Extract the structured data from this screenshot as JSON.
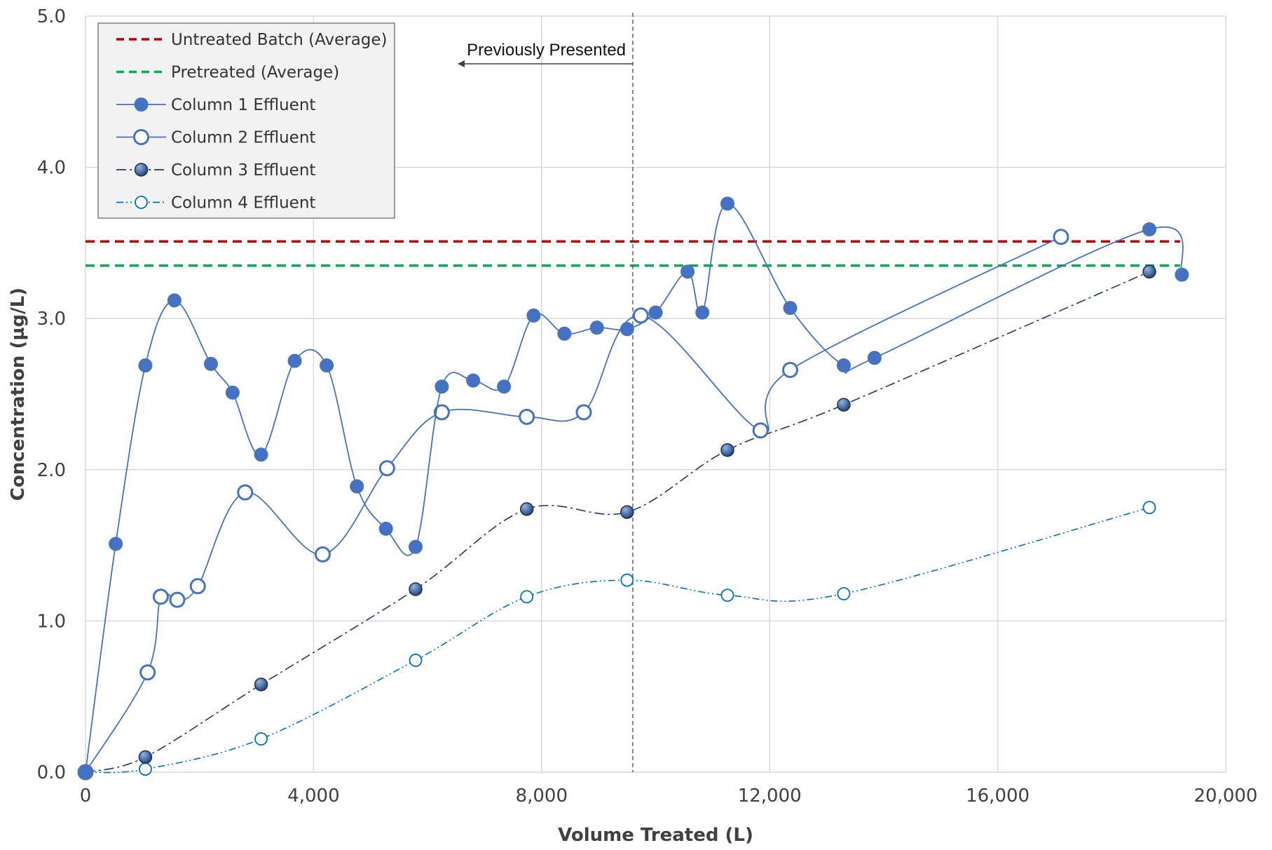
{
  "chart_data": {
    "type": "line",
    "title": "",
    "xlabel": "Volume Treated (L)",
    "ylabel": "Concentration (µg/L)",
    "xlim": [
      0,
      20000
    ],
    "ylim": [
      0,
      5
    ],
    "x_ticks": [
      0,
      4000,
      8000,
      12000,
      16000,
      20000
    ],
    "x_tick_labels": [
      "0",
      "4,000",
      "8,000",
      "12,000",
      "16,000",
      "20,000"
    ],
    "y_ticks": [
      0,
      1,
      2,
      3,
      4,
      5
    ],
    "y_tick_labels": [
      "0.0",
      "1.0",
      "2.0",
      "3.0",
      "4.0",
      "5.0"
    ],
    "grid": true,
    "legend_position": "top-left",
    "reference_lines": [
      {
        "name": "Untreated Batch (Average)",
        "y": 3.51,
        "x_range": [
          0,
          19200
        ],
        "color": "#C00000",
        "style": "dashed"
      },
      {
        "name": "Pretreated (Average)",
        "y": 3.35,
        "x_range": [
          0,
          19200
        ],
        "color": "#00B050",
        "style": "dashed"
      }
    ],
    "annotation": {
      "text": "Previously Presented",
      "x": 9600
    },
    "series": [
      {
        "name": "Column 1 Effluent",
        "marker": "filled",
        "color": "#4472C4",
        "line_style": "solid",
        "x": [
          0,
          530,
          1050,
          1560,
          2200,
          2580,
          3080,
          3670,
          4230,
          4760,
          5270,
          5790,
          6250,
          6800,
          7340,
          7860,
          8400,
          8970,
          9500,
          10000,
          10560,
          10820,
          11260,
          12360,
          13300,
          13840,
          18660,
          19230
        ],
        "y": [
          0,
          1.51,
          2.69,
          3.12,
          2.7,
          2.51,
          2.1,
          2.72,
          2.69,
          1.89,
          1.61,
          1.49,
          2.55,
          2.59,
          2.55,
          3.02,
          2.9,
          2.94,
          2.93,
          3.04,
          3.31,
          3.04,
          3.76,
          3.07,
          2.69,
          2.74,
          3.59,
          3.29
        ]
      },
      {
        "name": "Column 2 Effluent",
        "marker": "open",
        "color": "#4472C4",
        "line_style": "solid",
        "x": [
          0,
          1090,
          1320,
          1610,
          1970,
          2800,
          4160,
          5290,
          6250,
          7740,
          8740,
          9740,
          11840,
          12360,
          17110
        ],
        "y": [
          0,
          0.66,
          1.16,
          1.14,
          1.23,
          1.85,
          1.44,
          2.01,
          2.38,
          2.35,
          2.38,
          3.02,
          2.26,
          2.66,
          3.54
        ]
      },
      {
        "name": "Column 3 Effluent",
        "marker": "filled-dark",
        "color": "#203864",
        "line_style": "dashdot",
        "x": [
          0,
          1050,
          3080,
          5790,
          7740,
          9500,
          11260,
          13300,
          18660
        ],
        "y": [
          0,
          0.1,
          0.58,
          1.21,
          1.74,
          1.72,
          2.13,
          2.43,
          3.31
        ]
      },
      {
        "name": "Column 4 Effluent",
        "marker": "open-small",
        "color": "#0070C0",
        "line_style": "dashdotdot",
        "x": [
          0,
          1050,
          3080,
          5790,
          7740,
          9500,
          11260,
          13300,
          18660
        ],
        "y": [
          0,
          0.02,
          0.22,
          0.74,
          1.16,
          1.27,
          1.17,
          1.18,
          1.75
        ]
      }
    ]
  }
}
